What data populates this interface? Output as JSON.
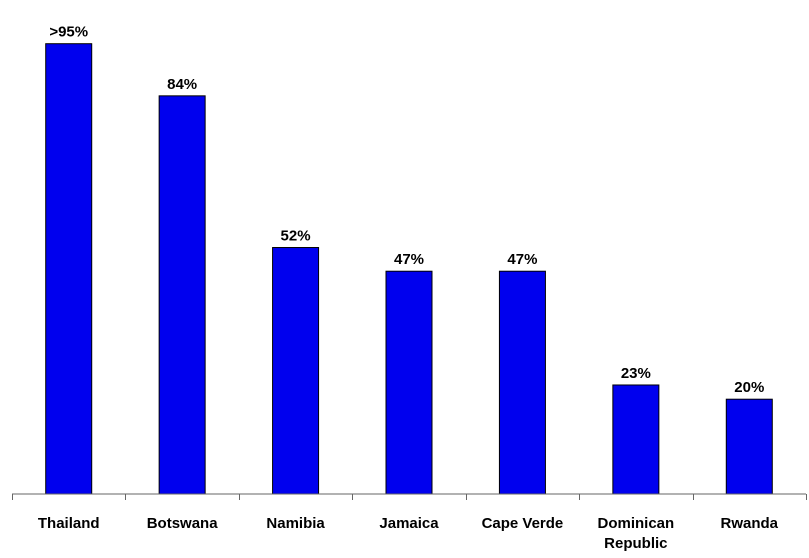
{
  "chart_data": {
    "type": "bar",
    "title": "",
    "xlabel": "",
    "ylabel": "",
    "ylim": [
      0,
      100
    ],
    "grid": false,
    "legend": "none",
    "categories": [
      "Thailand",
      "Botswana",
      "Namibia",
      "Jamaica",
      "Cape Verde",
      "Dominican Republic",
      "Rwanda"
    ],
    "tick_labels": [
      [
        "Thailand"
      ],
      [
        "Botswana"
      ],
      [
        "Namibia"
      ],
      [
        "Jamaica"
      ],
      [
        "Cape Verde"
      ],
      [
        "Dominican",
        "Republic"
      ],
      [
        "Rwanda"
      ]
    ],
    "values": [
      95,
      84,
      52,
      47,
      47,
      23,
      20
    ],
    "data_labels": [
      ">95%",
      "84%",
      "52%",
      "47%",
      "47%",
      "23%",
      "20%"
    ],
    "bar_color": "#0000ee"
  }
}
